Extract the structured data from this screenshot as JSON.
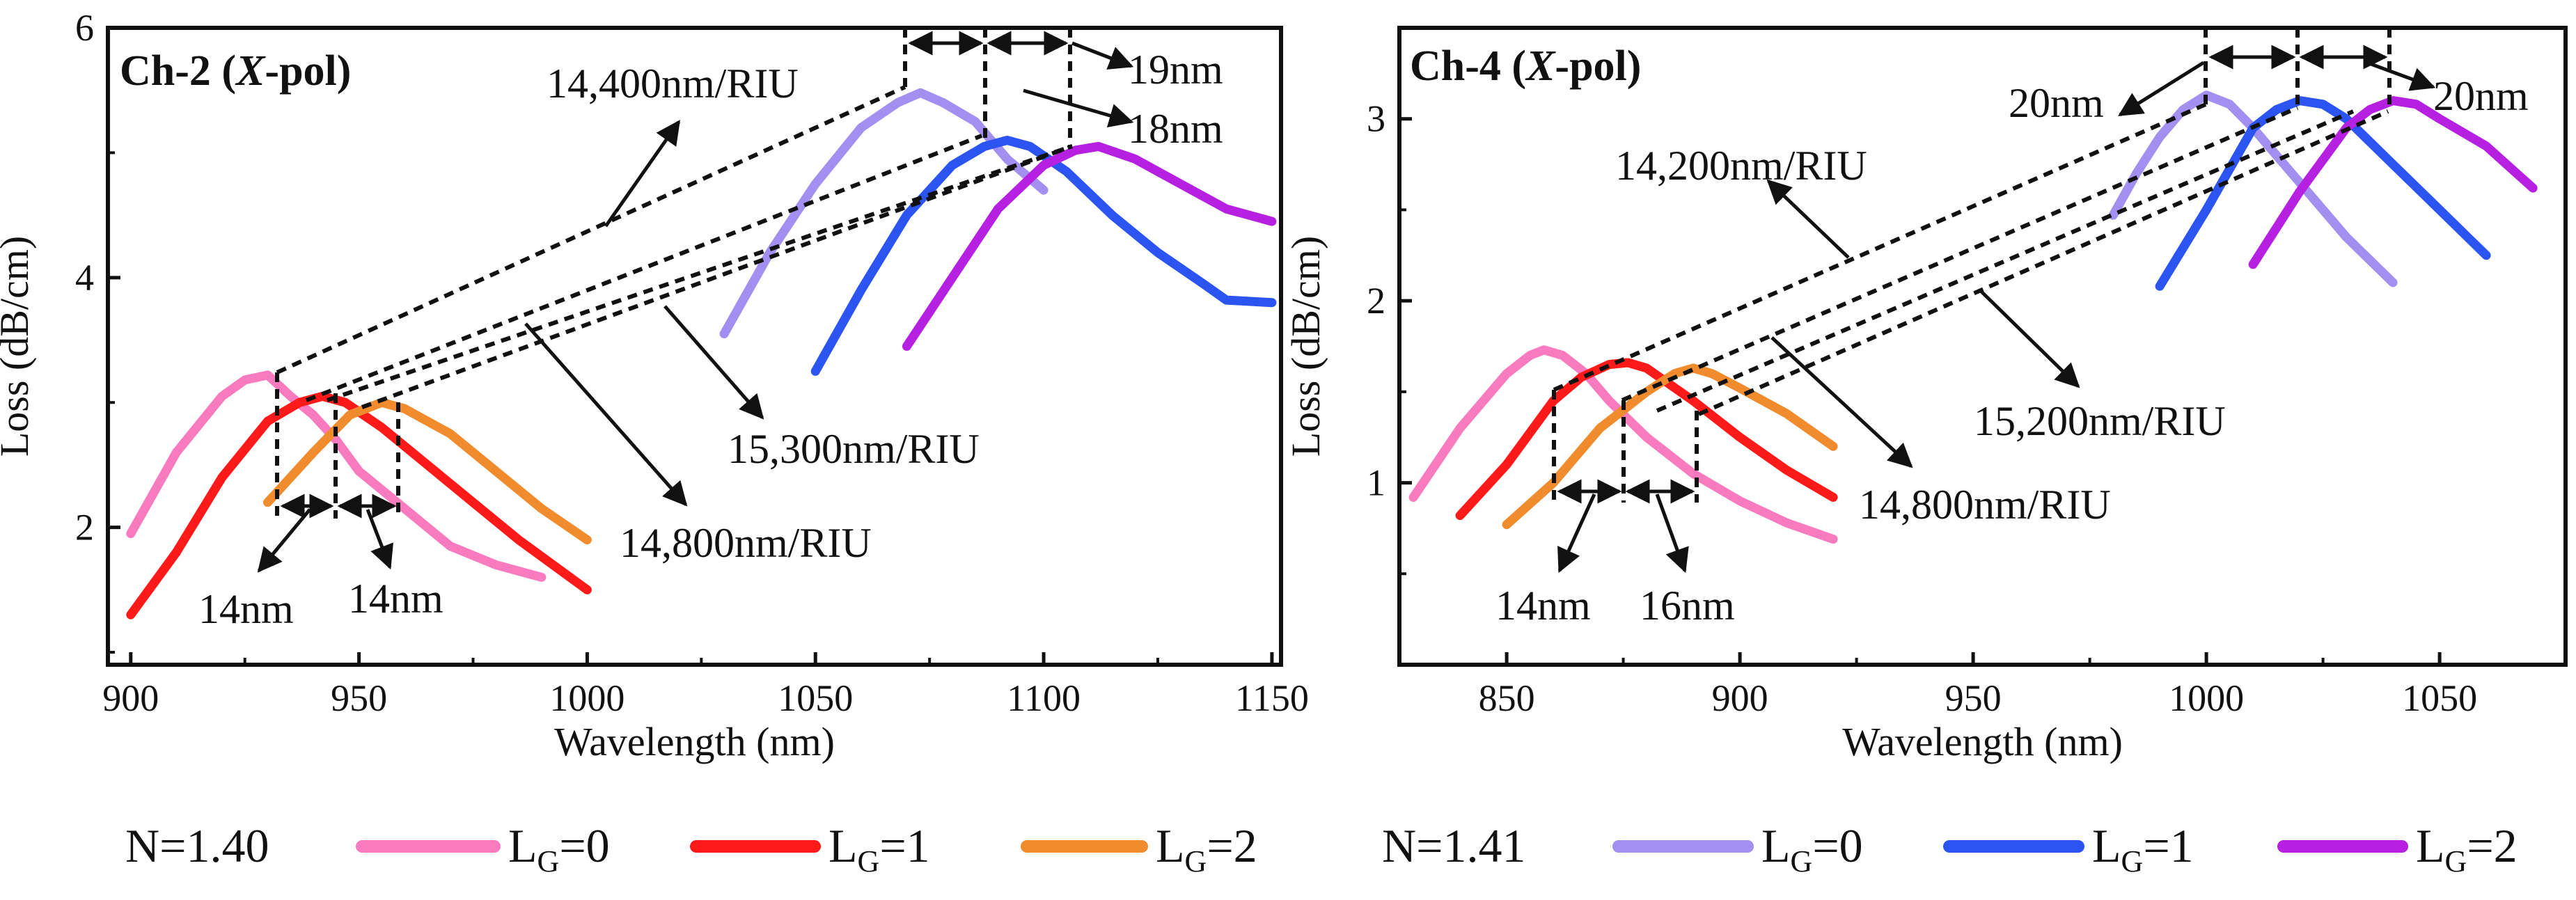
{
  "chart_data": [
    {
      "type": "line",
      "title": "Ch-2 (X-pol)",
      "title_parts": {
        "prefix": "Ch-2 (",
        "italic": "X",
        "suffix": "-pol)"
      },
      "xlabel": "Wavelength (nm)",
      "ylabel": "Loss (dB/cm)",
      "xlim": [
        895,
        1152
      ],
      "ylim": [
        0.9,
        6
      ],
      "xticks": [
        900,
        950,
        1000,
        1050,
        1100,
        1150
      ],
      "yticks": [
        2,
        4,
        6
      ],
      "series": [
        {
          "name": "N=1.40, LG=0",
          "color": "#f97bbf",
          "x": [
            900,
            910,
            920,
            925,
            930,
            935,
            940,
            945,
            950,
            960,
            970,
            980,
            990
          ],
          "y": [
            1.95,
            2.6,
            3.05,
            3.18,
            3.22,
            3.05,
            2.9,
            2.7,
            2.45,
            2.15,
            1.85,
            1.7,
            1.6
          ]
        },
        {
          "name": "N=1.40, LG=1",
          "color": "#ff1a1a",
          "x": [
            900,
            910,
            920,
            930,
            937,
            942,
            947,
            955,
            965,
            975,
            985,
            1000
          ],
          "y": [
            1.3,
            1.8,
            2.4,
            2.85,
            3.0,
            3.05,
            3.0,
            2.8,
            2.5,
            2.2,
            1.9,
            1.5
          ]
        },
        {
          "name": "N=1.40, LG=2",
          "color": "#f08c2e",
          "x": [
            930,
            940,
            948,
            955,
            960,
            970,
            980,
            990,
            1000
          ],
          "y": [
            2.2,
            2.6,
            2.9,
            3.0,
            2.95,
            2.75,
            2.45,
            2.15,
            1.9
          ]
        },
        {
          "name": "N=1.41, LG=0",
          "color": "#a38ff0",
          "x": [
            1030,
            1040,
            1050,
            1060,
            1068,
            1073,
            1078,
            1085,
            1092,
            1100
          ],
          "y": [
            3.55,
            4.2,
            4.75,
            5.2,
            5.4,
            5.48,
            5.4,
            5.25,
            4.95,
            4.7
          ]
        },
        {
          "name": "N=1.41, LG=1",
          "color": "#2b54f0",
          "x": [
            1050,
            1060,
            1070,
            1080,
            1087,
            1092,
            1097,
            1105,
            1115,
            1125,
            1135,
            1140,
            1150
          ],
          "y": [
            3.25,
            3.9,
            4.5,
            4.9,
            5.05,
            5.1,
            5.05,
            4.85,
            4.5,
            4.2,
            3.95,
            3.82,
            3.8
          ]
        },
        {
          "name": "N=1.41, LG=2",
          "color": "#b620e0",
          "x": [
            1070,
            1080,
            1090,
            1100,
            1107,
            1112,
            1120,
            1130,
            1140,
            1150
          ],
          "y": [
            3.45,
            4.0,
            4.55,
            4.9,
            5.02,
            5.05,
            4.95,
            4.75,
            4.55,
            4.45
          ]
        }
      ],
      "annotations": [
        {
          "text": "14,400nm/RIU"
        },
        {
          "text": "15,300nm/RIU"
        },
        {
          "text": "14,800nm/RIU"
        },
        {
          "text": "19nm"
        },
        {
          "text": "18nm"
        },
        {
          "text": "14nm"
        },
        {
          "text": "14nm"
        }
      ]
    },
    {
      "type": "line",
      "title": "Ch-4 (X-pol)",
      "title_parts": {
        "prefix": "Ch-4 (",
        "italic": "X",
        "suffix": "-pol)"
      },
      "xlabel": "Wavelength (nm)",
      "ylabel": "Loss (dB/cm)",
      "xlim": [
        827,
        1077
      ],
      "ylim": [
        0.0,
        3.5
      ],
      "xticks": [
        850,
        900,
        950,
        1000,
        1050
      ],
      "yticks": [
        1,
        2,
        3
      ],
      "series": [
        {
          "name": "N=1.40, LG=0",
          "color": "#f97bbf",
          "x": [
            830,
            840,
            850,
            855,
            858,
            862,
            867,
            872,
            880,
            890,
            900,
            910,
            920
          ],
          "y": [
            0.92,
            1.3,
            1.6,
            1.7,
            1.73,
            1.7,
            1.6,
            1.45,
            1.25,
            1.05,
            0.9,
            0.78,
            0.69
          ]
        },
        {
          "name": "N=1.40, LG=1",
          "color": "#ff1a1a",
          "x": [
            840,
            850,
            860,
            866,
            872,
            876,
            880,
            890,
            900,
            910,
            920
          ],
          "y": [
            0.82,
            1.1,
            1.45,
            1.58,
            1.65,
            1.66,
            1.63,
            1.45,
            1.25,
            1.07,
            0.92
          ]
        },
        {
          "name": "N=1.40, LG=2",
          "color": "#f08c2e",
          "x": [
            850,
            860,
            870,
            880,
            886,
            890,
            894,
            900,
            910,
            920
          ],
          "y": [
            0.77,
            1.0,
            1.3,
            1.5,
            1.6,
            1.63,
            1.6,
            1.52,
            1.38,
            1.2
          ]
        },
        {
          "name": "N=1.41, LG=0",
          "color": "#a38ff0",
          "x": [
            980,
            985,
            990,
            995,
            1000,
            1005,
            1010,
            1020,
            1030,
            1040
          ],
          "y": [
            2.47,
            2.7,
            2.9,
            3.05,
            3.13,
            3.08,
            2.95,
            2.65,
            2.35,
            2.1
          ]
        },
        {
          "name": "N=1.41, LG=1",
          "color": "#2b54f0",
          "x": [
            990,
            1000,
            1010,
            1015,
            1020,
            1025,
            1030,
            1040,
            1050,
            1060
          ],
          "y": [
            2.08,
            2.5,
            2.95,
            3.05,
            3.1,
            3.08,
            3.0,
            2.75,
            2.5,
            2.25
          ]
        },
        {
          "name": "N=1.41, LG=2",
          "color": "#b620e0",
          "x": [
            1010,
            1020,
            1030,
            1035,
            1040,
            1045,
            1050,
            1060,
            1070
          ],
          "y": [
            2.2,
            2.6,
            2.95,
            3.05,
            3.1,
            3.08,
            3.0,
            2.85,
            2.62
          ]
        }
      ],
      "annotations": [
        {
          "text": "14,200nm/RIU"
        },
        {
          "text": "15,200nm/RIU"
        },
        {
          "text": "14,800nm/RIU"
        },
        {
          "text": "20nm"
        },
        {
          "text": "20nm"
        },
        {
          "text": "14nm"
        },
        {
          "text": "16nm"
        }
      ]
    }
  ],
  "legends": [
    {
      "label": "N=1.40",
      "entries": [
        {
          "base": "L",
          "sub": "G",
          "suffix": "=0",
          "color": "#f97bbf"
        },
        {
          "base": "L",
          "sub": "G",
          "suffix": "=1",
          "color": "#ff1a1a"
        },
        {
          "base": "L",
          "sub": "G",
          "suffix": "=2",
          "color": "#f08c2e"
        }
      ]
    },
    {
      "label": "N=1.41",
      "entries": [
        {
          "base": "L",
          "sub": "G",
          "suffix": "=0",
          "color": "#a38ff0"
        },
        {
          "base": "L",
          "sub": "G",
          "suffix": "=1",
          "color": "#2b54f0"
        },
        {
          "base": "L",
          "sub": "G",
          "suffix": "=2",
          "color": "#b620e0"
        }
      ]
    }
  ]
}
